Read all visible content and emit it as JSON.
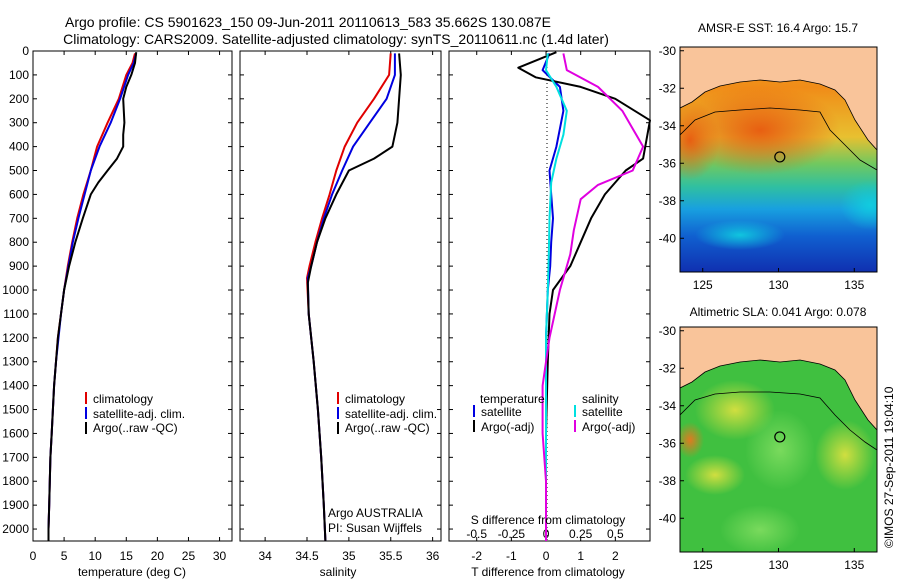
{
  "header": {
    "line1": "Argo profile: CS 5901623_150 09-Jun-2011 20110613_583 35.662S 130.087E",
    "line2": "Climatology: CARS2009. Satellite-adjusted climatology: synTS_20110611.nc (1.4d later)"
  },
  "credit": "©IMOS 27-Sep-2011 19:04:10",
  "colors": {
    "climatology": "#e00000",
    "satellite": "#0000e0",
    "argo": "#000000",
    "s_satellite": "#00e0e0",
    "s_argo": "#e000e0",
    "land": "#f9c49a"
  },
  "chart_data": [
    {
      "type": "line",
      "xlabel": "temperature (deg C)",
      "xlim": [
        0,
        32
      ],
      "xticks": [
        "0",
        "5",
        "10",
        "15",
        "20",
        "25",
        "30"
      ],
      "ylim": [
        2050,
        0
      ],
      "yticks": [
        "0",
        "100",
        "200",
        "300",
        "400",
        "500",
        "600",
        "700",
        "800",
        "900",
        "1000",
        "1100",
        "1200",
        "1300",
        "1400",
        "1500",
        "1600",
        "1700",
        "1800",
        "1900",
        "2000"
      ],
      "legend": [
        "climatology",
        "satellite-adj. clim.",
        "Argo(..raw -QC)"
      ],
      "series": [
        {
          "name": "climatology",
          "color": "#e00000",
          "points": [
            [
              16.4,
              10
            ],
            [
              16.0,
              50
            ],
            [
              15.0,
              100
            ],
            [
              13.8,
              200
            ],
            [
              12.0,
              300
            ],
            [
              10.3,
              400
            ],
            [
              9.3,
              500
            ],
            [
              8.1,
              600
            ],
            [
              7.1,
              700
            ],
            [
              6.3,
              800
            ],
            [
              5.6,
              900
            ],
            [
              5.0,
              1000
            ],
            [
              4.5,
              1100
            ],
            [
              4.0,
              1200
            ],
            [
              3.7,
              1300
            ],
            [
              3.4,
              1400
            ],
            [
              3.2,
              1500
            ],
            [
              3.0,
              1600
            ],
            [
              2.8,
              1700
            ],
            [
              2.7,
              1800
            ],
            [
              2.6,
              1900
            ],
            [
              2.5,
              2000
            ],
            [
              2.5,
              2050
            ]
          ]
        },
        {
          "name": "satellite-adj. clim.",
          "color": "#0000e0",
          "points": [
            [
              16.6,
              10
            ],
            [
              16.2,
              50
            ],
            [
              15.3,
              100
            ],
            [
              14.0,
              200
            ],
            [
              12.5,
              300
            ],
            [
              10.7,
              400
            ],
            [
              9.3,
              500
            ],
            [
              8.3,
              600
            ],
            [
              7.3,
              700
            ],
            [
              6.4,
              800
            ],
            [
              5.7,
              900
            ],
            [
              5.0,
              1000
            ],
            [
              4.5,
              1100
            ],
            [
              4.1,
              1200
            ],
            [
              3.7,
              1300
            ],
            [
              3.4,
              1400
            ],
            [
              3.2,
              1500
            ],
            [
              3.0,
              1600
            ],
            [
              2.8,
              1700
            ],
            [
              2.7,
              1800
            ],
            [
              2.6,
              1900
            ],
            [
              2.5,
              2000
            ],
            [
              2.5,
              2050
            ]
          ]
        },
        {
          "name": "Argo(..raw -QC)",
          "color": "#000000",
          "points": [
            [
              16.6,
              5
            ],
            [
              16.4,
              50
            ],
            [
              15.8,
              100
            ],
            [
              15.0,
              150
            ],
            [
              14.5,
              200
            ],
            [
              14.6,
              250
            ],
            [
              14.7,
              300
            ],
            [
              14.5,
              350
            ],
            [
              14.5,
              400
            ],
            [
              13.5,
              450
            ],
            [
              12.0,
              500
            ],
            [
              10.5,
              550
            ],
            [
              9.3,
              600
            ],
            [
              8.0,
              700
            ],
            [
              6.8,
              800
            ],
            [
              5.8,
              900
            ],
            [
              5.0,
              1000
            ],
            [
              4.5,
              1100
            ],
            [
              4.0,
              1200
            ],
            [
              3.7,
              1300
            ],
            [
              3.4,
              1400
            ],
            [
              3.2,
              1500
            ],
            [
              3.0,
              1600
            ],
            [
              2.8,
              1700
            ],
            [
              2.7,
              1800
            ],
            [
              2.6,
              1900
            ],
            [
              2.5,
              2000
            ],
            [
              2.5,
              2050
            ]
          ]
        }
      ]
    },
    {
      "type": "line",
      "xlabel": "salinity",
      "xlim": [
        33.7,
        36.1
      ],
      "xticks": [
        "34",
        "34.5",
        "35",
        "35.5",
        "36"
      ],
      "ylim": [
        2050,
        0
      ],
      "legend": [
        "climatology",
        "satellite-adj. clim.",
        "Argo(..raw -QC)"
      ],
      "annotation": [
        "Argo AUSTRALIA",
        "PI: Susan Wijffels"
      ],
      "series": [
        {
          "name": "climatology",
          "color": "#e00000",
          "points": [
            [
              35.5,
              10
            ],
            [
              35.48,
              100
            ],
            [
              35.3,
              200
            ],
            [
              35.1,
              300
            ],
            [
              34.95,
              400
            ],
            [
              34.85,
              500
            ],
            [
              34.77,
              600
            ],
            [
              34.68,
              700
            ],
            [
              34.6,
              800
            ],
            [
              34.53,
              900
            ],
            [
              34.5,
              950
            ],
            [
              34.52,
              1100
            ],
            [
              34.58,
              1300
            ],
            [
              34.63,
              1500
            ],
            [
              34.67,
              1700
            ],
            [
              34.7,
              1900
            ],
            [
              34.72,
              2050
            ]
          ]
        },
        {
          "name": "satellite-adj. clim.",
          "color": "#0000e0",
          "points": [
            [
              35.55,
              10
            ],
            [
              35.55,
              100
            ],
            [
              35.45,
              200
            ],
            [
              35.25,
              300
            ],
            [
              35.05,
              400
            ],
            [
              34.92,
              500
            ],
            [
              34.8,
              600
            ],
            [
              34.7,
              700
            ],
            [
              34.62,
              800
            ],
            [
              34.55,
              900
            ],
            [
              34.51,
              950
            ],
            [
              34.52,
              1100
            ],
            [
              34.58,
              1300
            ],
            [
              34.63,
              1500
            ],
            [
              34.67,
              1700
            ],
            [
              34.7,
              1900
            ],
            [
              34.72,
              2050
            ]
          ]
        },
        {
          "name": "Argo(..raw -QC)",
          "color": "#000000",
          "points": [
            [
              35.6,
              10
            ],
            [
              35.62,
              100
            ],
            [
              35.6,
              200
            ],
            [
              35.58,
              300
            ],
            [
              35.52,
              400
            ],
            [
              35.3,
              450
            ],
            [
              35.0,
              500
            ],
            [
              34.85,
              600
            ],
            [
              34.72,
              700
            ],
            [
              34.62,
              800
            ],
            [
              34.55,
              900
            ],
            [
              34.51,
              970
            ],
            [
              34.52,
              1100
            ],
            [
              34.58,
              1300
            ],
            [
              34.63,
              1500
            ],
            [
              34.67,
              1700
            ],
            [
              34.7,
              1900
            ],
            [
              34.72,
              2050
            ]
          ]
        }
      ]
    },
    {
      "type": "line",
      "xlabel": "T difference from climatology",
      "xlim": [
        -2.8,
        3.0
      ],
      "xticks": [
        "-2",
        "-1",
        "0",
        "1",
        "2"
      ],
      "top_axis_label": "S difference from climatology",
      "top_ticks": [
        "-0.5",
        "-0.25",
        "0",
        "0.25",
        "0.5"
      ],
      "ylim": [
        2050,
        0
      ],
      "legend_left_title": "temperature",
      "legend_right_title": "salinity",
      "legend": [
        "satellite",
        "Argo(-adj)",
        "satellite",
        "Argo(-adj)"
      ],
      "series": [
        {
          "name": "satellite",
          "color": "#0000e0",
          "points": [
            [
              0.1,
              10
            ],
            [
              -0.1,
              80
            ],
            [
              0.4,
              150
            ],
            [
              0.5,
              250
            ],
            [
              0.3,
              400
            ],
            [
              0.1,
              500
            ],
            [
              0.15,
              600
            ],
            [
              0.2,
              700
            ],
            [
              0.15,
              800
            ],
            [
              0.12,
              900
            ],
            [
              0.05,
              1000
            ],
            [
              0.0,
              1200
            ],
            [
              0.0,
              1500
            ],
            [
              0.0,
              1800
            ],
            [
              0.0,
              2050
            ]
          ]
        },
        {
          "name": "Argo(-adj)",
          "color": "#000000",
          "points": [
            [
              0.3,
              5
            ],
            [
              -0.8,
              70
            ],
            [
              -0.3,
              110
            ],
            [
              1.0,
              150
            ],
            [
              2.0,
              200
            ],
            [
              3.0,
              290
            ],
            [
              2.8,
              450
            ],
            [
              2.3,
              500
            ],
            [
              1.7,
              600
            ],
            [
              1.3,
              700
            ],
            [
              1.0,
              800
            ],
            [
              0.7,
              900
            ],
            [
              0.2,
              1000
            ],
            [
              0.1,
              1100
            ],
            [
              0.05,
              1300
            ],
            [
              0.0,
              1600
            ],
            [
              0.0,
              2050
            ]
          ]
        },
        {
          "name": "satellite",
          "color": "#00e0e0",
          "points": [
            [
              0.05,
              10
            ],
            [
              0.0,
              80
            ],
            [
              0.3,
              150
            ],
            [
              0.6,
              250
            ],
            [
              0.5,
              350
            ],
            [
              0.3,
              450
            ],
            [
              0.15,
              550
            ],
            [
              0.1,
              700
            ],
            [
              0.08,
              850
            ],
            [
              0.05,
              1000
            ],
            [
              0.0,
              1200
            ],
            [
              0.0,
              1500
            ],
            [
              0.0,
              1800
            ],
            [
              0.0,
              2050
            ]
          ]
        },
        {
          "name": "Argo(-adj)",
          "color": "#e000e0",
          "points": [
            [
              0.5,
              10
            ],
            [
              0.6,
              80
            ],
            [
              1.5,
              150
            ],
            [
              2.2,
              250
            ],
            [
              2.8,
              400
            ],
            [
              2.5,
              500
            ],
            [
              1.5,
              560
            ],
            [
              1.0,
              620
            ],
            [
              0.8,
              750
            ],
            [
              0.7,
              850
            ],
            [
              0.4,
              1000
            ],
            [
              0.1,
              1200
            ],
            [
              -0.1,
              1400
            ],
            [
              -0.1,
              1600
            ],
            [
              0.0,
              1800
            ],
            [
              0.0,
              2050
            ]
          ]
        }
      ]
    },
    {
      "type": "heatmap",
      "title": "AMSR-E SST: 16.4  Argo: 15.7",
      "xlim": [
        123.5,
        136.5
      ],
      "xticks": [
        "125",
        "130",
        "135"
      ],
      "ylim": [
        -41.8,
        -29.8
      ],
      "yticks": [
        "-30",
        "-32",
        "-34",
        "-36",
        "-38",
        "-40"
      ],
      "float_position": [
        130.087,
        -35.662
      ]
    },
    {
      "type": "heatmap",
      "title": "Altimetric SLA: 0.041  Argo: 0.078",
      "xlim": [
        123.5,
        136.5
      ],
      "xticks": [
        "125",
        "130",
        "135"
      ],
      "ylim": [
        -41.8,
        -29.8
      ],
      "yticks": [
        "-30",
        "-32",
        "-34",
        "-36",
        "-38",
        "-40"
      ],
      "float_position": [
        130.087,
        -35.662
      ]
    }
  ]
}
